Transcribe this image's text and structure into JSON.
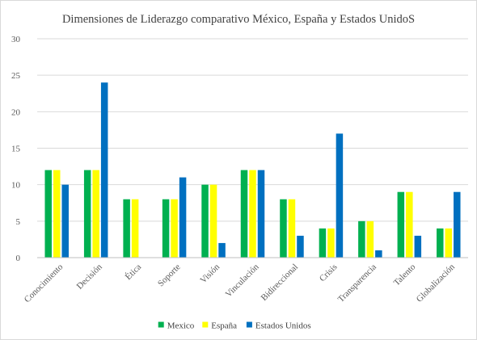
{
  "chart_data": {
    "type": "bar",
    "title": "Dimensiones de Liderazgo comparativo México, España y Estados UnidoS",
    "xlabel": "",
    "ylabel": "",
    "ylim": [
      0,
      30
    ],
    "yticks": [
      0,
      5,
      10,
      15,
      20,
      25,
      30
    ],
    "grid": true,
    "legend_position": "bottom",
    "categories": [
      "Conocimiento",
      "Decisión",
      "Ética",
      "Soporte",
      "Visión",
      "Vinculación",
      "Bidireccional",
      "Crisis",
      "Transparencia",
      "Talento",
      "Globalización"
    ],
    "series": [
      {
        "name": "Mexico",
        "color": "#00b050",
        "values": [
          12,
          12,
          8,
          8,
          10,
          12,
          8,
          4,
          5,
          9,
          4
        ]
      },
      {
        "name": "España",
        "color": "#ffff00",
        "values": [
          12,
          12,
          8,
          8,
          10,
          12,
          8,
          4,
          5,
          9,
          4
        ]
      },
      {
        "name": "Estados Unidos",
        "color": "#0070c0",
        "values": [
          10,
          24,
          0,
          11,
          2,
          12,
          3,
          17,
          1,
          3,
          9
        ]
      }
    ]
  }
}
